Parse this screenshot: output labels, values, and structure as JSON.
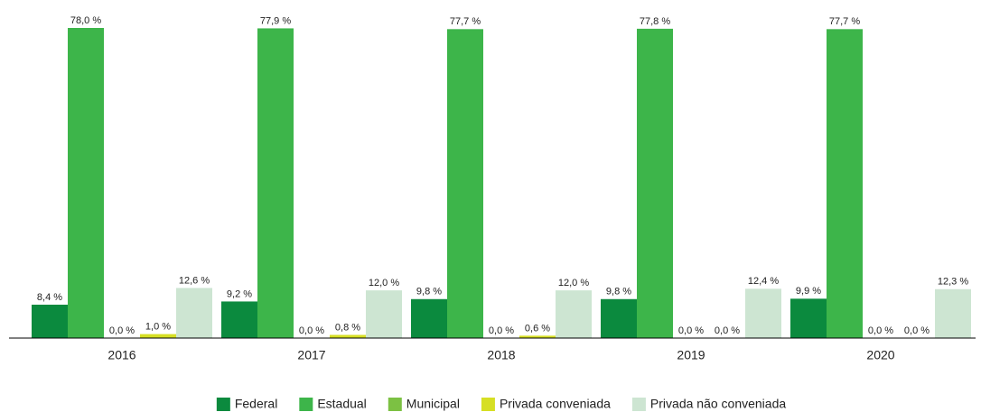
{
  "chart_data": {
    "type": "bar",
    "categories": [
      "2016",
      "2017",
      "2018",
      "2019",
      "2020"
    ],
    "series": [
      {
        "name": "Federal",
        "color": "#0b8a3e",
        "values": [
          8.4,
          9.2,
          9.8,
          9.8,
          9.9
        ],
        "value_labels": [
          "8,4 %",
          "9,2 %",
          "9,8 %",
          "9,8 %",
          "9,9 %"
        ]
      },
      {
        "name": "Estadual",
        "color": "#3db54a",
        "values": [
          78.0,
          77.9,
          77.7,
          77.8,
          77.7
        ],
        "value_labels": [
          "78,0 %",
          "77,9 %",
          "77,7 %",
          "77,8 %",
          "77,7 %"
        ]
      },
      {
        "name": "Municipal",
        "color": "#7cc143",
        "values": [
          0,
          0,
          0,
          0,
          0
        ],
        "value_labels": [
          "0,0 %",
          "0,0 %",
          "0,0 %",
          "0,0 %",
          "0,0 %"
        ]
      },
      {
        "name": "Privada conveniada",
        "color": "#d6df24",
        "values": [
          1.0,
          0.8,
          0.6,
          0,
          0
        ],
        "value_labels": [
          "1,0 %",
          "0,8 %",
          "0,6 %",
          "0,0 %",
          "0,0 %"
        ]
      },
      {
        "name": "Privada não conveniada",
        "color": "#cde5d2",
        "values": [
          12.6,
          12.0,
          12.0,
          12.4,
          12.3
        ],
        "value_labels": [
          "12,6 %",
          "12,0 %",
          "12,0 %",
          "12,4 %",
          "12,3 %"
        ]
      }
    ],
    "legend": "bottom"
  }
}
